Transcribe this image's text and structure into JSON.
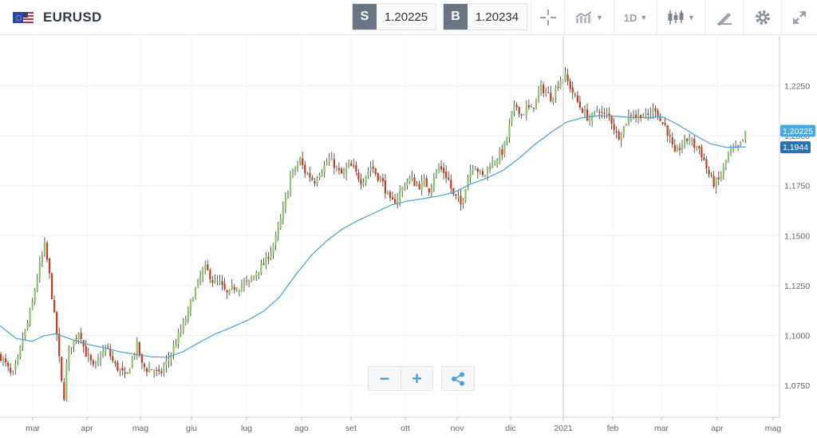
{
  "header": {
    "symbol": "EURUSD",
    "sell": {
      "label": "S",
      "price": "1.20225"
    },
    "buy": {
      "label": "B",
      "price": "1.20234"
    },
    "timeframe": "1D"
  },
  "colors": {
    "bull": "#8fc26b",
    "bear": "#c83b22",
    "ma": "#4e9fd0",
    "price_tag": "#4aa9e0",
    "ma_tag": "#2a73b0",
    "sell_tag": "#6a7584",
    "icon": "#4f9fd8"
  },
  "icons": [
    "eu-us-flag",
    "crosshair-icon",
    "compare-icon",
    "candlestick-icon",
    "draw-icon",
    "gear-icon",
    "expand-icon",
    "zoom-out-icon",
    "zoom-in-icon",
    "share-icon"
  ],
  "chart_data": {
    "type": "candlestick",
    "y_ticks": [
      "1,2250",
      "1,2000",
      "1,1750",
      "1,1500",
      "1,1250",
      "1,1000",
      "1,0750"
    ],
    "ylim": [
      1.062,
      1.24
    ],
    "x_ticks": [
      "mar",
      "apr",
      "mag",
      "giu",
      "lug",
      "ago",
      "set",
      "ott",
      "nov",
      "dic",
      "2021",
      "feb",
      "mar",
      "apr",
      "mag"
    ],
    "grid": true,
    "current_price": 1.20225,
    "current_price_label": "1,20225",
    "ma_value": 1.1944,
    "ma_label": "1,1944",
    "close_path": [
      [
        0,
        1.09
      ],
      [
        8,
        1.085
      ],
      [
        15,
        1.079
      ],
      [
        22,
        1.087
      ],
      [
        28,
        1.098
      ],
      [
        34,
        1.105
      ],
      [
        40,
        1.115
      ],
      [
        48,
        1.132
      ],
      [
        56,
        1.145
      ],
      [
        62,
        1.13
      ],
      [
        68,
        1.11
      ],
      [
        72,
        1.098
      ],
      [
        76,
        1.08
      ],
      [
        80,
        1.068
      ],
      [
        84,
        1.088
      ],
      [
        88,
        1.095
      ],
      [
        94,
        1.098
      ],
      [
        100,
        1.103
      ],
      [
        106,
        1.092
      ],
      [
        112,
        1.088
      ],
      [
        118,
        1.083
      ],
      [
        126,
        1.09
      ],
      [
        134,
        1.094
      ],
      [
        140,
        1.088
      ],
      [
        146,
        1.084
      ],
      [
        152,
        1.082
      ],
      [
        158,
        1.078
      ],
      [
        164,
        1.087
      ],
      [
        172,
        1.095
      ],
      [
        178,
        1.085
      ],
      [
        184,
        1.083
      ],
      [
        192,
        1.083
      ],
      [
        200,
        1.08
      ],
      [
        208,
        1.086
      ],
      [
        216,
        1.092
      ],
      [
        224,
        1.1
      ],
      [
        230,
        1.105
      ],
      [
        236,
        1.112
      ],
      [
        242,
        1.12
      ],
      [
        250,
        1.128
      ],
      [
        256,
        1.134
      ],
      [
        262,
        1.131
      ],
      [
        268,
        1.126
      ],
      [
        274,
        1.127
      ],
      [
        280,
        1.123
      ],
      [
        286,
        1.12
      ],
      [
        292,
        1.124
      ],
      [
        298,
        1.124
      ],
      [
        304,
        1.126
      ],
      [
        310,
        1.126
      ],
      [
        316,
        1.128
      ],
      [
        322,
        1.133
      ],
      [
        328,
        1.134
      ],
      [
        334,
        1.138
      ],
      [
        340,
        1.143
      ],
      [
        346,
        1.149
      ],
      [
        352,
        1.158
      ],
      [
        358,
        1.168
      ],
      [
        364,
        1.18
      ],
      [
        370,
        1.183
      ],
      [
        376,
        1.188
      ],
      [
        382,
        1.182
      ],
      [
        388,
        1.18
      ],
      [
        394,
        1.177
      ],
      [
        400,
        1.182
      ],
      [
        406,
        1.184
      ],
      [
        412,
        1.188
      ],
      [
        418,
        1.186
      ],
      [
        424,
        1.182
      ],
      [
        430,
        1.18
      ],
      [
        436,
        1.185
      ],
      [
        442,
        1.184
      ],
      [
        448,
        1.18
      ],
      [
        454,
        1.177
      ],
      [
        460,
        1.182
      ],
      [
        466,
        1.185
      ],
      [
        472,
        1.18
      ],
      [
        478,
        1.178
      ],
      [
        484,
        1.172
      ],
      [
        490,
        1.166
      ],
      [
        496,
        1.168
      ],
      [
        502,
        1.172
      ],
      [
        508,
        1.176
      ],
      [
        514,
        1.179
      ],
      [
        520,
        1.176
      ],
      [
        526,
        1.175
      ],
      [
        532,
        1.177
      ],
      [
        538,
        1.173
      ],
      [
        544,
        1.18
      ],
      [
        550,
        1.184
      ],
      [
        556,
        1.182
      ],
      [
        562,
        1.178
      ],
      [
        568,
        1.17
      ],
      [
        574,
        1.168
      ],
      [
        578,
        1.165
      ],
      [
        582,
        1.172
      ],
      [
        588,
        1.182
      ],
      [
        594,
        1.186
      ],
      [
        600,
        1.182
      ],
      [
        606,
        1.179
      ],
      [
        612,
        1.185
      ],
      [
        618,
        1.186
      ],
      [
        624,
        1.19
      ],
      [
        630,
        1.192
      ],
      [
        636,
        1.2
      ],
      [
        642,
        1.212
      ],
      [
        648,
        1.215
      ],
      [
        654,
        1.21
      ],
      [
        660,
        1.214
      ],
      [
        666,
        1.213
      ],
      [
        672,
        1.218
      ],
      [
        678,
        1.224
      ],
      [
        684,
        1.222
      ],
      [
        690,
        1.219
      ],
      [
        696,
        1.223
      ],
      [
        702,
        1.228
      ],
      [
        708,
        1.23
      ],
      [
        714,
        1.225
      ],
      [
        720,
        1.22
      ],
      [
        726,
        1.215
      ],
      [
        732,
        1.212
      ],
      [
        738,
        1.208
      ],
      [
        744,
        1.21
      ],
      [
        750,
        1.214
      ],
      [
        756,
        1.21
      ],
      [
        762,
        1.211
      ],
      [
        768,
        1.206
      ],
      [
        774,
        1.199
      ],
      [
        780,
        1.203
      ],
      [
        786,
        1.208
      ],
      [
        792,
        1.212
      ],
      [
        798,
        1.209
      ],
      [
        804,
        1.211
      ],
      [
        810,
        1.209
      ],
      [
        816,
        1.212
      ],
      [
        822,
        1.214
      ],
      [
        828,
        1.207
      ],
      [
        834,
        1.205
      ],
      [
        840,
        1.198
      ],
      [
        846,
        1.19
      ],
      [
        852,
        1.194
      ],
      [
        858,
        1.197
      ],
      [
        864,
        1.199
      ],
      [
        870,
        1.195
      ],
      [
        876,
        1.194
      ],
      [
        882,
        1.188
      ],
      [
        888,
        1.181
      ],
      [
        894,
        1.176
      ],
      [
        900,
        1.177
      ],
      [
        906,
        1.183
      ],
      [
        912,
        1.19
      ],
      [
        918,
        1.193
      ],
      [
        924,
        1.193
      ],
      [
        930,
        1.197
      ],
      [
        936,
        1.202
      ]
    ],
    "ma_path": [
      [
        0,
        1.1048
      ],
      [
        20,
        1.0985
      ],
      [
        40,
        1.097
      ],
      [
        55,
        1.0998
      ],
      [
        70,
        1.1008
      ],
      [
        90,
        1.098
      ],
      [
        110,
        1.0955
      ],
      [
        130,
        1.0938
      ],
      [
        150,
        1.0918
      ],
      [
        170,
        1.0905
      ],
      [
        190,
        1.0893
      ],
      [
        210,
        1.089
      ],
      [
        230,
        1.092
      ],
      [
        250,
        1.0965
      ],
      [
        270,
        1.1008
      ],
      [
        290,
        1.104
      ],
      [
        310,
        1.1075
      ],
      [
        330,
        1.112
      ],
      [
        350,
        1.119
      ],
      [
        370,
        1.13
      ],
      [
        390,
        1.14
      ],
      [
        410,
        1.1475
      ],
      [
        430,
        1.1535
      ],
      [
        450,
        1.1578
      ],
      [
        470,
        1.1615
      ],
      [
        490,
        1.1653
      ],
      [
        510,
        1.1672
      ],
      [
        530,
        1.1685
      ],
      [
        550,
        1.1698
      ],
      [
        570,
        1.1718
      ],
      [
        590,
        1.1758
      ],
      [
        610,
        1.1788
      ],
      [
        630,
        1.1825
      ],
      [
        650,
        1.1885
      ],
      [
        670,
        1.1955
      ],
      [
        690,
        1.2015
      ],
      [
        710,
        1.2068
      ],
      [
        730,
        1.209
      ],
      [
        750,
        1.21
      ],
      [
        770,
        1.2098
      ],
      [
        790,
        1.2092
      ],
      [
        810,
        1.209
      ],
      [
        830,
        1.2095
      ],
      [
        850,
        1.2055
      ],
      [
        870,
        1.2005
      ],
      [
        890,
        1.196
      ],
      [
        910,
        1.1942
      ],
      [
        935,
        1.1944
      ]
    ]
  }
}
